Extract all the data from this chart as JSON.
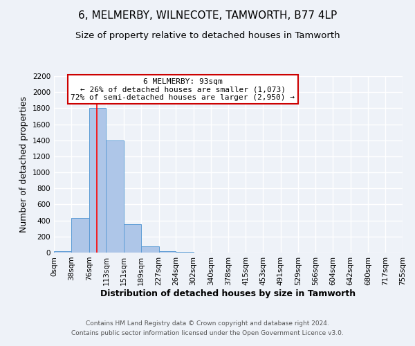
{
  "title": "6, MELMERBY, WILNECOTE, TAMWORTH, B77 4LP",
  "subtitle": "Size of property relative to detached houses in Tamworth",
  "xlabel": "Distribution of detached houses by size in Tamworth",
  "ylabel": "Number of detached properties",
  "bin_edges": [
    0,
    38,
    76,
    113,
    151,
    189,
    227,
    264,
    302,
    340,
    378,
    415,
    453,
    491,
    529,
    566,
    604,
    642,
    680,
    717,
    755
  ],
  "bin_labels": [
    "0sqm",
    "38sqm",
    "76sqm",
    "113sqm",
    "151sqm",
    "189sqm",
    "227sqm",
    "264sqm",
    "302sqm",
    "340sqm",
    "378sqm",
    "415sqm",
    "453sqm",
    "491sqm",
    "529sqm",
    "566sqm",
    "604sqm",
    "642sqm",
    "680sqm",
    "717sqm",
    "755sqm"
  ],
  "counts": [
    15,
    430,
    1800,
    1400,
    350,
    75,
    20,
    5,
    0,
    0,
    0,
    0,
    0,
    0,
    0,
    0,
    0,
    0,
    0,
    0
  ],
  "bar_color": "#aec6e8",
  "bar_edge_color": "#5b9bd5",
  "red_line_x": 93,
  "ylim": [
    0,
    2200
  ],
  "yticks": [
    0,
    200,
    400,
    600,
    800,
    1000,
    1200,
    1400,
    1600,
    1800,
    2000,
    2200
  ],
  "annotation_title": "6 MELMERBY: 93sqm",
  "annotation_line1": "← 26% of detached houses are smaller (1,073)",
  "annotation_line2": "72% of semi-detached houses are larger (2,950) →",
  "annotation_box_color": "#ffffff",
  "annotation_box_edge": "#cc0000",
  "footer_line1": "Contains HM Land Registry data © Crown copyright and database right 2024.",
  "footer_line2": "Contains public sector information licensed under the Open Government Licence v3.0.",
  "background_color": "#eef2f8",
  "grid_color": "#ffffff",
  "title_fontsize": 11,
  "subtitle_fontsize": 9.5,
  "axis_label_fontsize": 9,
  "tick_fontsize": 7.5,
  "footer_fontsize": 6.5,
  "annotation_fontsize": 8
}
